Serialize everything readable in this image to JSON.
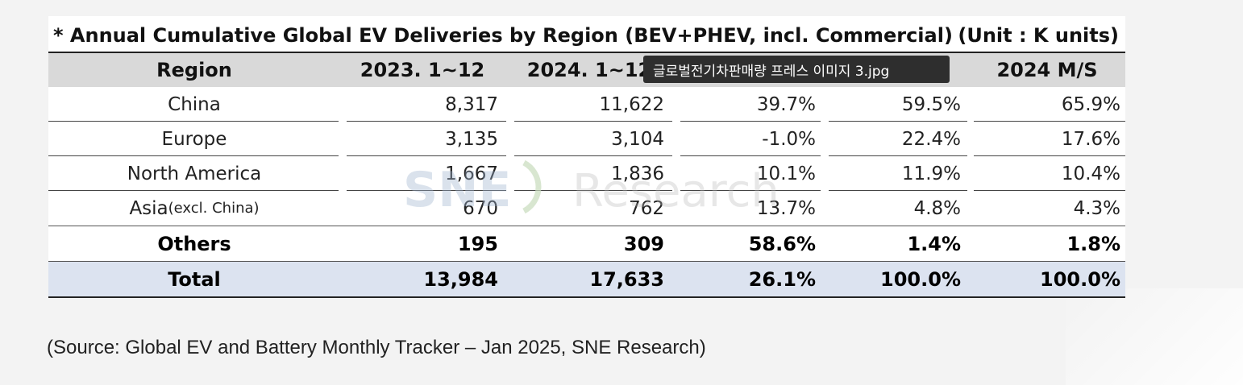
{
  "table": {
    "title": "* Annual Cumulative Global EV Deliveries by Region (BEV+PHEV, incl. Commercial)",
    "unit": "(Unit : K units)",
    "headers": [
      "Region",
      "2023. 1~12",
      "2024. 1~12",
      "",
      "",
      "2024 M/S"
    ],
    "rows": [
      {
        "region": "China",
        "region_note": "",
        "y2023": "8,317",
        "y2024": "11,622",
        "growth": "39.7%",
        "ms2023": "59.5%",
        "ms2024": "65.9%"
      },
      {
        "region": "Europe",
        "region_note": "",
        "y2023": "3,135",
        "y2024": "3,104",
        "growth": "-1.0%",
        "ms2023": "22.4%",
        "ms2024": "17.6%"
      },
      {
        "region": "North America",
        "region_note": "",
        "y2023": "1,667",
        "y2024": "1,836",
        "growth": "10.1%",
        "ms2023": "11.9%",
        "ms2024": "10.4%"
      },
      {
        "region": "Asia",
        "region_note": "(excl. China)",
        "y2023": "670",
        "y2024": "762",
        "growth": "13.7%",
        "ms2023": "4.8%",
        "ms2024": "4.3%"
      },
      {
        "region": "Others",
        "region_note": "",
        "y2023": "195",
        "y2024": "309",
        "growth": "58.6%",
        "ms2023": "1.4%",
        "ms2024": "1.8%"
      },
      {
        "region": "Total",
        "region_note": "",
        "y2023": "13,984",
        "y2024": "17,633",
        "growth": "26.1%",
        "ms2023": "100.0%",
        "ms2024": "100.0%"
      }
    ]
  },
  "watermark": {
    "brand": "SNE",
    "suffix": "Research"
  },
  "tooltip": {
    "text": "글로벌전기차판매량 프레스 이미지 3.jpg"
  },
  "source": {
    "text": "(Source: Global EV and Battery Monthly Tracker – Jan 2025, SNE Research)"
  },
  "colors": {
    "header_bg": "#d9d9d9",
    "total_bg": "#dce3f0",
    "tooltip_bg": "#2e2e2e",
    "watermark_blue": "#9fb4cf",
    "watermark_green": "#a8c89a"
  }
}
